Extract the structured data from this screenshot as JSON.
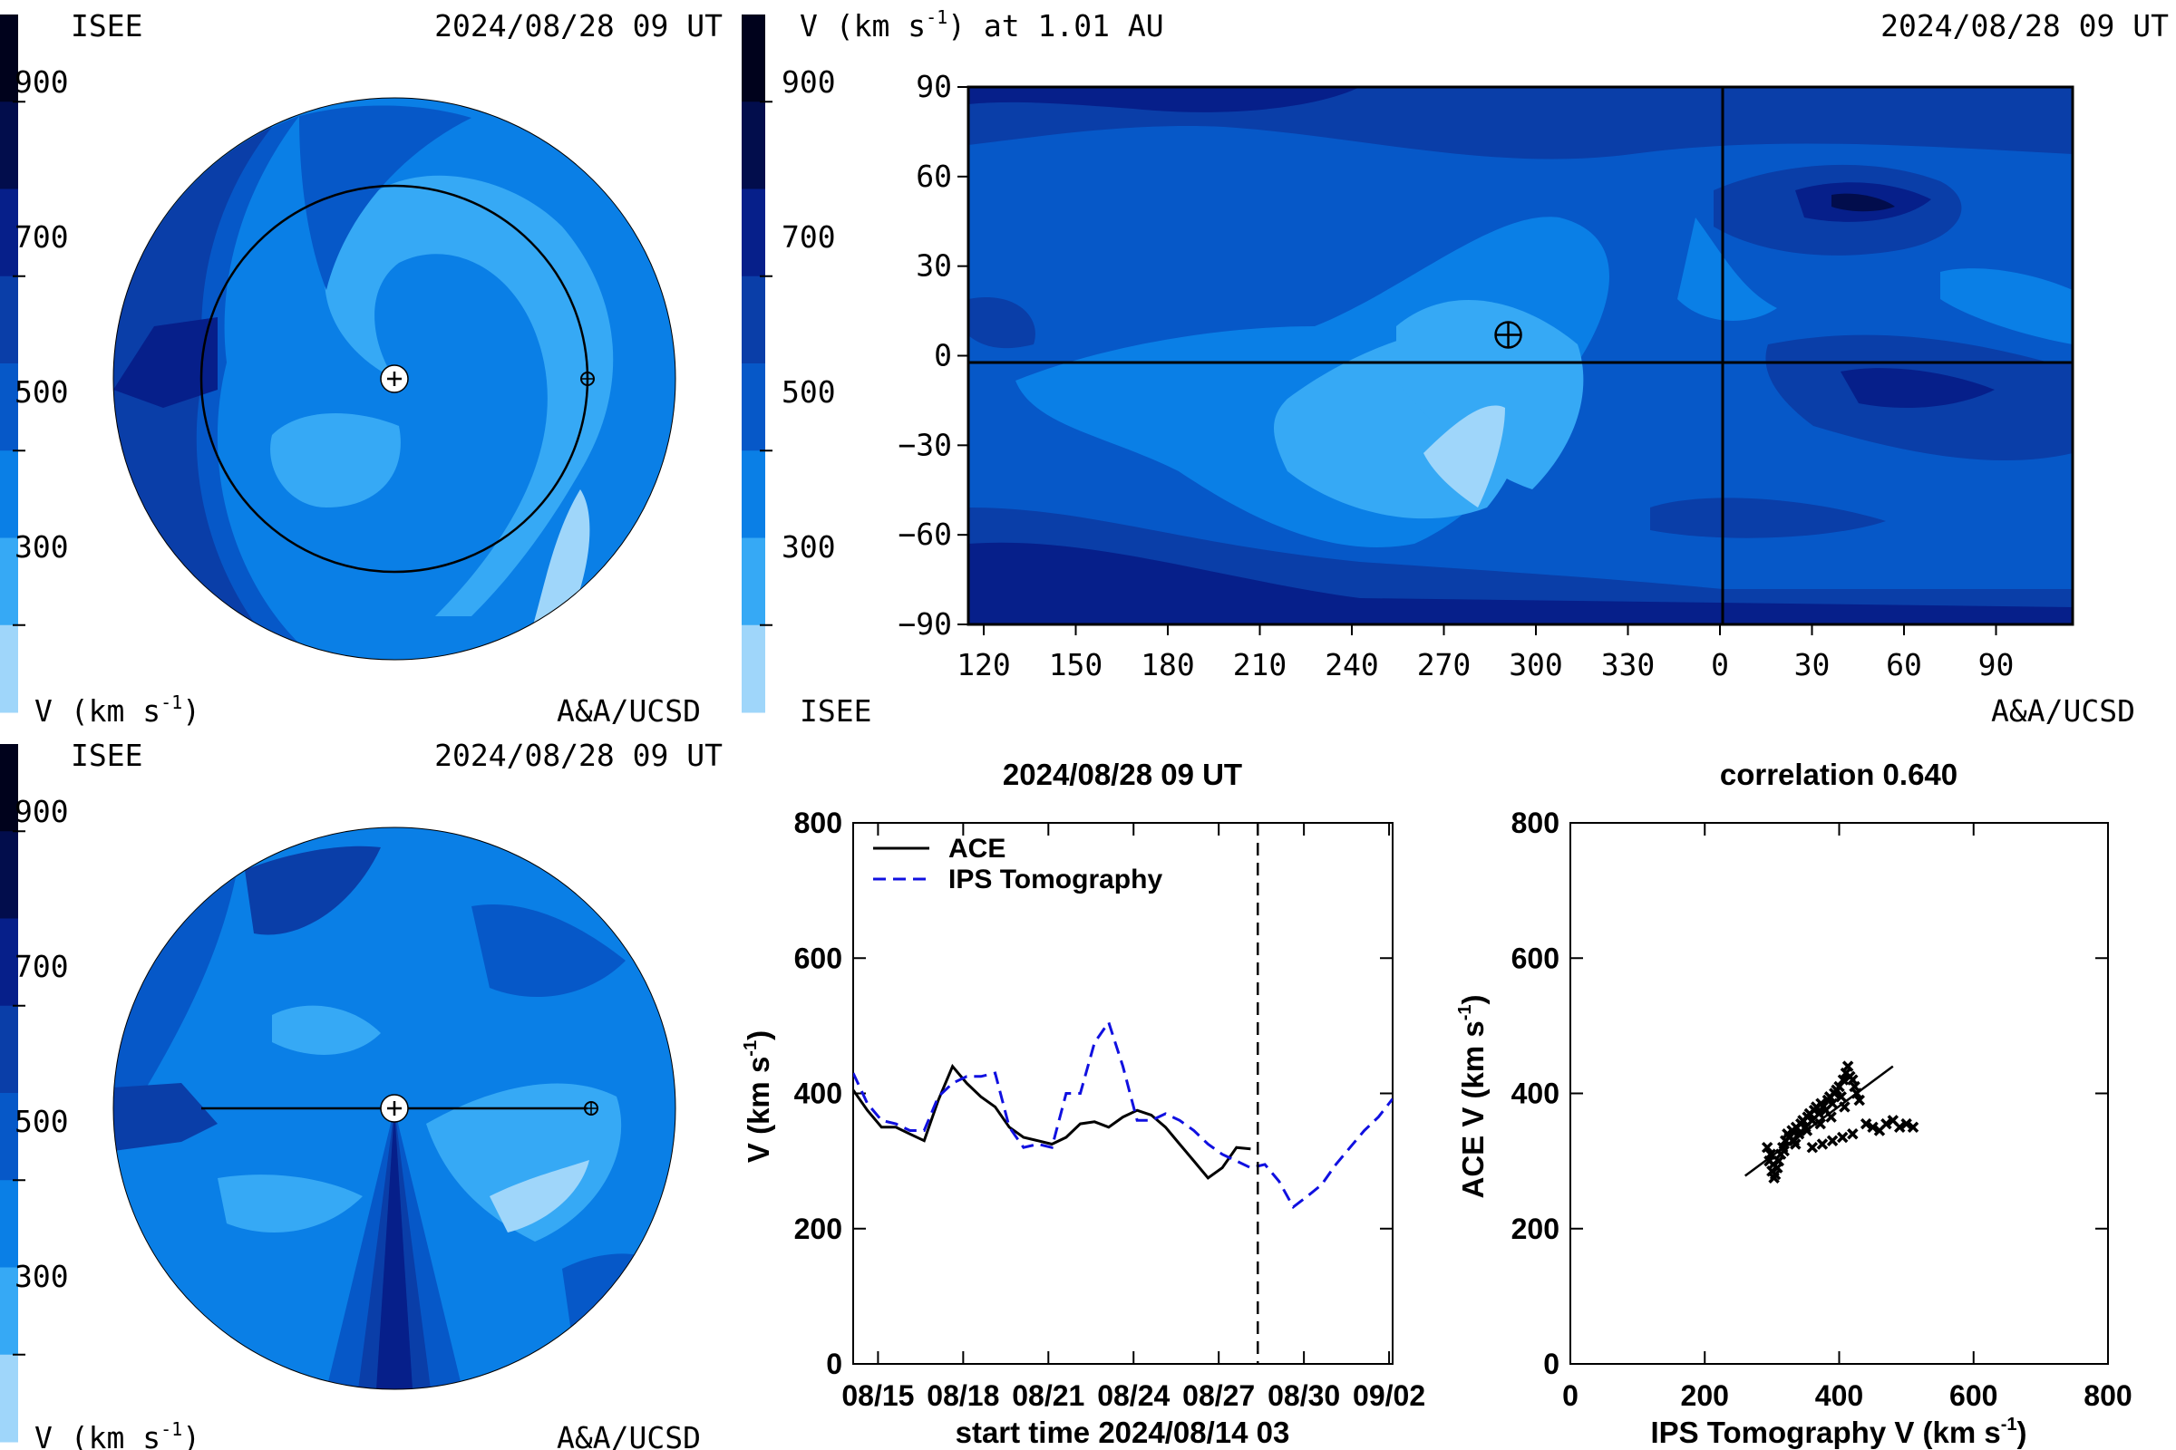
{
  "colors": {
    "band_200": "#9fd6fa",
    "band_300": "#36a9f5",
    "band_400": "#0a7fe6",
    "band_500": "#0658c8",
    "band_600": "#0a3ea8",
    "band_700": "#061f8a",
    "band_800": "#020d4c",
    "band_900": "#00021c",
    "ace_line": "#000000",
    "ips_line": "#1010e0"
  },
  "panel_top_left": {
    "left_label": "ISEE",
    "timestamp": "2024/08/28 09 UT",
    "colorbar_ticks": [
      "900",
      "700",
      "500",
      "300"
    ],
    "unit_label": "V (km s",
    "unit_exp": "-1",
    "unit_close": ")",
    "credit": "A&A/UCSD"
  },
  "panel_top_right": {
    "title_left": "V (km s",
    "title_exp": "-1",
    "title_right": ") at 1.01 AU",
    "timestamp": "2024/08/28 09 UT",
    "colorbar_ticks": [
      "900",
      "700",
      "500",
      "300"
    ],
    "bottom_left_label": "ISEE",
    "credit": "A&A/UCSD",
    "y_ticks": [
      "90",
      "60",
      "30",
      "0",
      "−30",
      "−60",
      "−90"
    ],
    "x_ticks": [
      "120",
      "150",
      "180",
      "210",
      "240",
      "270",
      "300",
      "330",
      "0",
      "30",
      "60",
      "90"
    ],
    "earth_lon": 291,
    "earth_lat": 7
  },
  "panel_bottom_left": {
    "left_label": "ISEE",
    "timestamp": "2024/08/28 09 UT",
    "colorbar_ticks": [
      "900",
      "700",
      "500",
      "300"
    ],
    "unit_label": "V (km s",
    "unit_exp": "-1",
    "unit_close": ")",
    "credit": "A&A/UCSD"
  },
  "chart_data": [
    {
      "type": "line",
      "title": "2024/08/28 09 UT",
      "xlabel": "start time 2024/08/14 03",
      "ylabel_main": "V (km s",
      "ylabel_exp": "-1",
      "ylabel_close": ")",
      "x_tick_labels": [
        "08/15",
        "08/18",
        "08/21",
        "08/24",
        "08/27",
        "08/30",
        "09/02"
      ],
      "x_tick_days": [
        0.875,
        3.875,
        6.875,
        9.875,
        12.875,
        15.875,
        18.875
      ],
      "xlim_days": [
        0,
        19.0
      ],
      "ylim": [
        0,
        800
      ],
      "y_ticks": [
        0,
        200,
        400,
        600,
        800
      ],
      "current_time_day": 14.25,
      "series": [
        {
          "name": "ACE",
          "style": "solid",
          "x": [
            0,
            0.5,
            1.0,
            1.5,
            2.0,
            2.5,
            3.0,
            3.5,
            4.0,
            4.5,
            5.0,
            5.5,
            6.0,
            6.5,
            7.0,
            7.5,
            8.0,
            8.5,
            9.0,
            9.5,
            10.0,
            10.5,
            11.0,
            11.5,
            12.0,
            12.5,
            13.0,
            13.5,
            14.0
          ],
          "y": [
            405,
            375,
            350,
            350,
            340,
            330,
            390,
            440,
            415,
            395,
            380,
            350,
            335,
            330,
            325,
            335,
            355,
            358,
            350,
            365,
            375,
            368,
            350,
            325,
            300,
            275,
            290,
            320,
            318
          ]
        },
        {
          "name": "IPS Tomography",
          "style": "dashed",
          "x": [
            0,
            0.5,
            1.0,
            1.5,
            2.0,
            2.5,
            3.0,
            3.5,
            4.0,
            4.5,
            5.0,
            5.5,
            6.0,
            6.5,
            7.0,
            7.5,
            8.0,
            8.5,
            9.0,
            9.5,
            10.0,
            10.5,
            11.0,
            11.5,
            12.0,
            12.5,
            13.0,
            13.5,
            14.0,
            14.5,
            15.0,
            15.5,
            16.0,
            16.5,
            17.0,
            17.5,
            18.0,
            18.5,
            19.0
          ],
          "y": [
            430,
            385,
            360,
            355,
            345,
            345,
            395,
            415,
            425,
            425,
            430,
            350,
            320,
            325,
            320,
            400,
            400,
            475,
            505,
            440,
            360,
            360,
            370,
            360,
            345,
            325,
            310,
            300,
            290,
            295,
            270,
            232,
            248,
            265,
            295,
            320,
            345,
            365,
            392
          ]
        }
      ]
    },
    {
      "type": "scatter",
      "title": "correlation 0.640",
      "xlabel_main": "IPS Tomography V (km s",
      "xlabel_exp": "-1",
      "xlabel_close": ")",
      "ylabel_main": "ACE V (km s",
      "ylabel_exp": "-1",
      "ylabel_close": ")",
      "xlim": [
        0,
        800
      ],
      "ylim": [
        0,
        800
      ],
      "x_ticks": [
        0,
        200,
        400,
        600,
        800
      ],
      "y_ticks": [
        0,
        200,
        400,
        600,
        800
      ],
      "fit_line": {
        "x": [
          260,
          480
        ],
        "y": [
          278,
          440
        ]
      },
      "points": {
        "x": [
          293,
          296,
          300,
          303,
          305,
          308,
          310,
          313,
          316,
          320,
          323,
          326,
          330,
          333,
          336,
          340,
          343,
          346,
          350,
          353,
          356,
          360,
          363,
          366,
          370,
          373,
          376,
          380,
          383,
          386,
          390,
          393,
          396,
          400,
          403,
          406,
          410,
          413,
          416,
          420,
          423,
          426,
          430,
          440,
          450,
          460,
          470,
          480,
          490,
          500,
          510,
          360,
          375,
          390,
          405,
          420,
          298,
          302,
          318,
          335,
          352,
          372,
          388,
          408
        ],
        "y": [
          320,
          300,
          285,
          275,
          280,
          290,
          300,
          310,
          320,
          330,
          340,
          335,
          345,
          330,
          350,
          340,
          355,
          360,
          350,
          365,
          370,
          360,
          375,
          380,
          370,
          385,
          380,
          375,
          390,
          395,
          385,
          400,
          405,
          410,
          395,
          420,
          430,
          440,
          425,
          420,
          410,
          400,
          390,
          355,
          350,
          345,
          355,
          360,
          350,
          355,
          350,
          320,
          325,
          330,
          335,
          340,
          310,
          295,
          315,
          325,
          345,
          355,
          365,
          380
        ]
      }
    }
  ]
}
